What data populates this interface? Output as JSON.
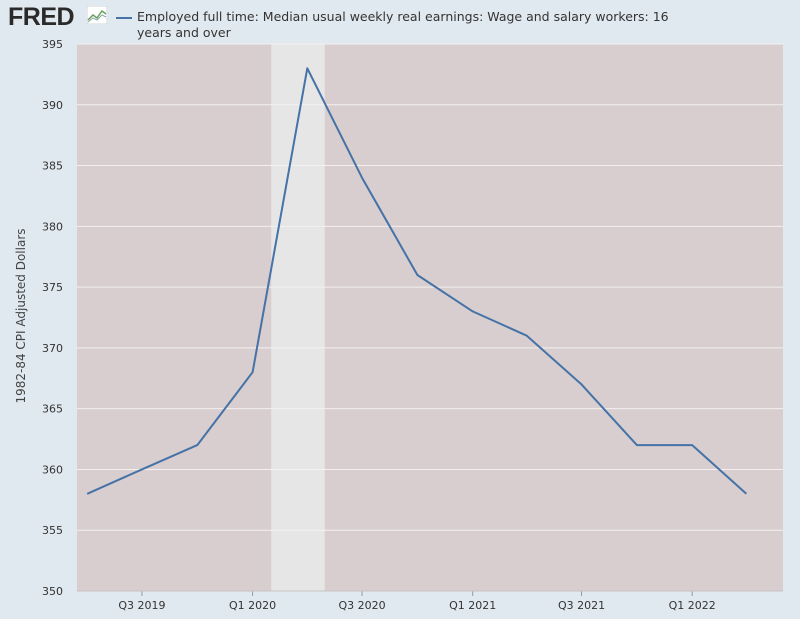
{
  "brand": {
    "logo_text": "FRED"
  },
  "chart_data": {
    "type": "line",
    "title": "",
    "ylabel": "1982-84 CPI Adjusted Dollars",
    "xlabel": "",
    "ylim": [
      350,
      395
    ],
    "yticks": [
      350,
      355,
      360,
      365,
      370,
      375,
      380,
      385,
      390,
      395
    ],
    "xlim": [
      "2019-03-15",
      "2022-06-01"
    ],
    "xticks": [
      {
        "date": "2019-07-01",
        "label": "Q3 2019"
      },
      {
        "date": "2020-01-01",
        "label": "Q1 2020"
      },
      {
        "date": "2020-07-01",
        "label": "Q3 2020"
      },
      {
        "date": "2021-01-01",
        "label": "Q1 2021"
      },
      {
        "date": "2021-07-01",
        "label": "Q3 2021"
      },
      {
        "date": "2022-01-01",
        "label": "Q1 2022"
      }
    ],
    "recession_shading": {
      "start": "2020-02-01",
      "end": "2020-04-30"
    },
    "grid": true,
    "legend_placement": "top",
    "series": [
      {
        "name": "Employed full time: Median usual weekly real earnings: Wage and salary workers: 16 years and over",
        "color": "#4572a7",
        "points": [
          {
            "x": "2019-04-01",
            "y": 358
          },
          {
            "x": "2019-07-01",
            "y": 360
          },
          {
            "x": "2019-10-01",
            "y": 362
          },
          {
            "x": "2020-01-01",
            "y": 368
          },
          {
            "x": "2020-04-01",
            "y": 393
          },
          {
            "x": "2020-07-01",
            "y": 384
          },
          {
            "x": "2020-10-01",
            "y": 376
          },
          {
            "x": "2021-01-01",
            "y": 373
          },
          {
            "x": "2021-04-01",
            "y": 371
          },
          {
            "x": "2021-07-01",
            "y": 367
          },
          {
            "x": "2021-10-01",
            "y": 362
          },
          {
            "x": "2022-01-01",
            "y": 362
          },
          {
            "x": "2022-04-01",
            "y": 358
          }
        ]
      }
    ]
  }
}
